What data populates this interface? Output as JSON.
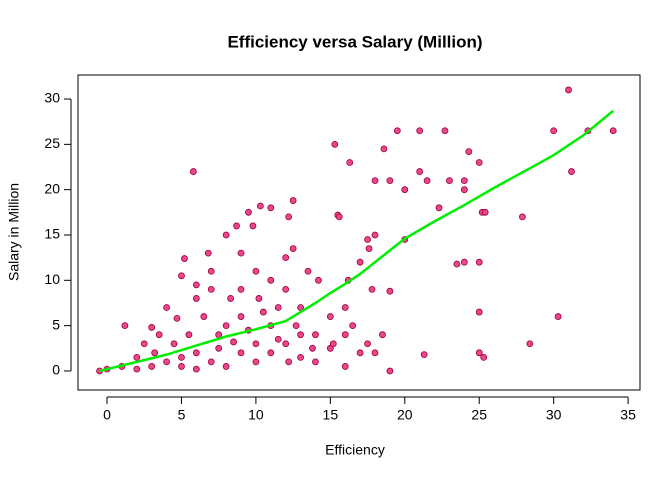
{
  "chart_data": {
    "type": "scatter",
    "title": "Efficiency versa Salary (Million)",
    "x_label": "Efficiency",
    "y_label": "Salary in Million",
    "xlim": [
      -1.95,
      35.8
    ],
    "ylim": [
      -2.1,
      32.65
    ],
    "xticks": [
      0,
      5,
      10,
      15,
      20,
      25,
      30,
      35
    ],
    "yticks": [
      0,
      5,
      10,
      15,
      20,
      25,
      30
    ],
    "series": [
      {
        "color": "#e8478b",
        "stroke": "#a0003c",
        "x": [
          31,
          30,
          32.3,
          34,
          31.2,
          27.9,
          30.3,
          28.4,
          19.5,
          21,
          22.7,
          15.3,
          5.8,
          16.3,
          18.6,
          24.3,
          25,
          18,
          19,
          20,
          21,
          21.5,
          23,
          24,
          22.3,
          24,
          25.2,
          25.4,
          24,
          23.5,
          25,
          25,
          25,
          25.3,
          21.3,
          19,
          18,
          16,
          16.2,
          15.5,
          15.6,
          17,
          17.5,
          18,
          17.6,
          20,
          19,
          18.5,
          17.5,
          16.5,
          15,
          14,
          14.2,
          13.5,
          12.5,
          12.2,
          11,
          10.3,
          9.5,
          9.8,
          8.7,
          8,
          9,
          10,
          11,
          12,
          12.5,
          6.8,
          5.2,
          5,
          6,
          7,
          8.3,
          9,
          10.2,
          11.5,
          12,
          13,
          13,
          12,
          11,
          10,
          9,
          8,
          7,
          6,
          5,
          4,
          3,
          2,
          1,
          0,
          -0.5,
          1.2,
          2.5,
          3.5,
          4,
          4.7,
          3,
          6.5,
          7.5,
          8,
          9,
          10,
          11,
          12.7,
          14,
          13,
          15,
          16,
          17.8,
          7,
          6,
          5.5,
          4.5,
          2,
          3.2,
          5,
          6,
          7.5,
          8.5,
          9.5,
          10.5,
          11.5,
          12.2,
          13.8,
          15.2,
          16,
          17
        ],
        "values": [
          31,
          26.5,
          26.5,
          26.5,
          22,
          17,
          6,
          3,
          26.5,
          26.5,
          26.5,
          25,
          22,
          23,
          24.5,
          24.2,
          23,
          21,
          21,
          20,
          22,
          21,
          21,
          21,
          18,
          20,
          17.5,
          17.5,
          12,
          11.8,
          12,
          6.5,
          2,
          1.5,
          1.8,
          0,
          2,
          0.5,
          10,
          17.2,
          17,
          12,
          14.5,
          15,
          13.5,
          14.5,
          8.8,
          4,
          3,
          5,
          2.5,
          4,
          10,
          11,
          18.8,
          17,
          18,
          18.2,
          17.5,
          16,
          16,
          15,
          13,
          11,
          10,
          12.5,
          13.5,
          13,
          12.4,
          10.5,
          9.5,
          9,
          8,
          9,
          8,
          7,
          9,
          7,
          4,
          3,
          2,
          1,
          2,
          0.5,
          1,
          2,
          0.5,
          1,
          0.5,
          1.5,
          0.5,
          0.2,
          0,
          5,
          3,
          4,
          7,
          5.8,
          4.8,
          6,
          4,
          5,
          6,
          3,
          5,
          5,
          1,
          1.5,
          6,
          4,
          9,
          11,
          8,
          4,
          3,
          0.2,
          2,
          1.5,
          0.2,
          2.5,
          3.2,
          4.5,
          6.5,
          3.5,
          1,
          2.5,
          3,
          7,
          2
        ]
      },
      {
        "color": "#00ee00",
        "x": [
          -0.5,
          2,
          4,
          6,
          8,
          10,
          12,
          13,
          14,
          15,
          16,
          17,
          18,
          19,
          20,
          22,
          24,
          26,
          28,
          30,
          32,
          34
        ],
        "values": [
          0,
          1,
          1.8,
          2.8,
          3.8,
          4.6,
          5.5,
          6.5,
          7.5,
          8.6,
          9.6,
          10.7,
          12,
          13.3,
          14.6,
          16.5,
          18.3,
          20.2,
          22,
          23.8,
          26,
          28.7
        ]
      }
    ]
  }
}
